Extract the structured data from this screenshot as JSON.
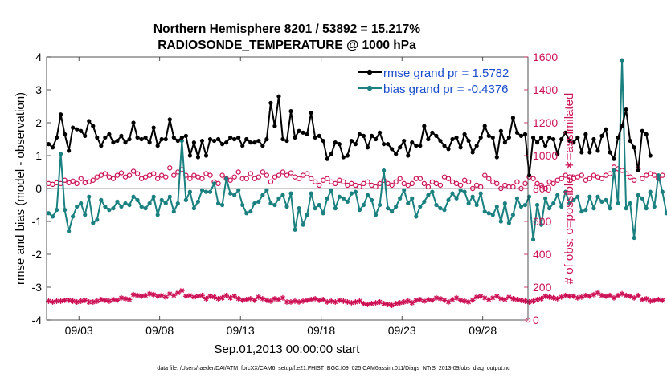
{
  "chart_data": {
    "type": "line",
    "title": [
      "Northern Hemisphere 8201 / 53892 = 15.217%",
      "RADIOSONDE_TEMPERATURE @ 1000 hPa"
    ],
    "xlabel": "Sep.01,2013 00:00:00 start",
    "ylabel_left": "rmse and bias (model - observation)",
    "ylabel_right": "# of obs: o=possible; ∗=assimilated",
    "footer": "data file: /Users/raeder/DAI/ATM_forcXX/CAM6_setup/f.e21.FHIST_BGC.f09_025.CAM6assim.011/Diags_NTrS_2013-09/obs_diag_output.nc",
    "xlim": [
      1.0,
      30.8
    ],
    "ylim_left": [
      -4,
      4
    ],
    "ylim_right": [
      0,
      1600
    ],
    "xticks": [
      3,
      8,
      13,
      18,
      23,
      28
    ],
    "xticklabels": [
      "09/03",
      "09/08",
      "09/13",
      "09/18",
      "09/23",
      "09/28"
    ],
    "yticks_left": [
      -4,
      -3,
      -2,
      -1,
      0,
      1,
      2,
      3,
      4
    ],
    "yticks_right": [
      0,
      200,
      400,
      600,
      800,
      1000,
      1200,
      1400,
      1600
    ],
    "x_step_days": 0.25,
    "x_start_day": 1.125,
    "legend_location": "top-right",
    "colors": {
      "rmse": "#000000",
      "bias": "#1a8080",
      "obs": "#cc1155",
      "legend_text": "#1a4ccc",
      "zero_line": "#999999"
    },
    "series": [
      {
        "name": "rmse",
        "legend": "rmse grand pr = 1.5782",
        "axis": "left",
        "values": [
          1.35,
          1.25,
          1.55,
          2.25,
          1.65,
          1.15,
          1.85,
          1.8,
          1.75,
          1.6,
          2.05,
          1.9,
          1.55,
          1.3,
          1.55,
          1.65,
          1.4,
          1.45,
          1.6,
          1.4,
          1.5,
          2.0,
          1.55,
          1.5,
          1.55,
          1.4,
          1.85,
          1.3,
          1.5,
          1.5,
          2.1,
          1.55,
          1.45,
          1.55,
          1.6,
          1.0,
          1.4,
          0.95,
          1.45,
          1.0,
          1.5,
          1.45,
          1.5,
          1.35,
          1.4,
          1.55,
          1.5,
          1.55,
          1.3,
          1.5,
          1.4,
          1.4,
          1.45,
          1.3,
          1.5,
          2.6,
          1.9,
          2.8,
          1.5,
          1.45,
          2.35,
          1.55,
          1.75,
          1.7,
          1.65,
          2.3,
          1.55,
          1.6,
          1.45,
          0.9,
          1.05,
          1.4,
          1.35,
          0.95,
          1.0,
          1.45,
          1.35,
          1.65,
          1.6,
          1.25,
          1.6,
          1.5,
          1.7,
          1.35,
          1.35,
          1.2,
          1.05,
          1.25,
          1.45,
          1.0,
          1.4,
          1.3,
          1.3,
          1.9,
          1.5,
          1.7,
          1.6,
          1.45,
          1.3,
          1.2,
          1.5,
          1.55,
          1.25,
          1.65,
          1.45,
          1.1,
          1.3,
          1.55,
          1.9,
          1.6,
          1.55,
          0.95,
          1.75,
          1.4,
          1.55,
          2.15,
          1.7,
          1.6,
          1.65,
          0.4,
          1.55,
          1.4,
          1.55,
          1.3,
          1.55,
          1.5,
          1.05,
          1.5,
          1.7,
          1.45,
          1.4,
          1.55,
          1.1,
          1.65,
          1.1,
          1.5,
          1.15,
          1.6,
          1.8,
          1.1,
          0.9,
          1.55,
          1.9,
          2.4,
          1.45,
          1.25,
          0.55,
          1.75,
          1.65,
          1.0
        ]
      },
      {
        "name": "bias",
        "legend": "bias grand pr = -0.4376",
        "axis": "left",
        "values": [
          -0.75,
          -0.85,
          -0.65,
          1.05,
          -0.65,
          -1.3,
          -0.85,
          -0.55,
          -0.45,
          -0.8,
          -0.25,
          -1.05,
          -0.95,
          -0.35,
          -0.55,
          -0.65,
          -0.6,
          -0.4,
          -0.55,
          -0.45,
          -0.5,
          -0.25,
          -0.35,
          -0.55,
          -0.6,
          -0.45,
          -0.25,
          -0.8,
          -0.35,
          -0.45,
          -0.25,
          -0.7,
          -0.45,
          1.45,
          -0.35,
          -0.1,
          -0.6,
          -0.4,
          -0.05,
          -0.1,
          -0.1,
          0.15,
          -0.45,
          -0.5,
          0.3,
          -0.15,
          -0.2,
          -0.05,
          -0.5,
          -0.75,
          -0.7,
          -0.45,
          -0.4,
          -0.2,
          -0.05,
          -0.45,
          -0.5,
          -0.3,
          -0.2,
          -0.55,
          -0.15,
          -1.25,
          -0.6,
          -1.1,
          -0.8,
          -0.15,
          -0.6,
          -0.5,
          -0.75,
          -0.3,
          -0.05,
          -0.6,
          -0.25,
          -0.3,
          -0.4,
          -0.15,
          -0.1,
          -0.65,
          -0.5,
          -0.2,
          -0.35,
          -0.8,
          -0.5,
          0.55,
          -0.6,
          -0.7,
          -0.55,
          -0.3,
          -0.05,
          -0.45,
          -0.3,
          -0.85,
          -0.55,
          -0.4,
          -0.2,
          -0.1,
          -0.5,
          -0.6,
          -0.65,
          -0.35,
          -0.15,
          -0.3,
          -0.05,
          -0.1,
          -0.45,
          -0.25,
          -0.5,
          -0.15,
          -0.7,
          -0.75,
          -0.8,
          -0.55,
          -1.0,
          -0.45,
          -1.05,
          -0.8,
          -0.3,
          -0.55,
          -0.5,
          -0.25,
          -1.55,
          -0.5,
          -1.1,
          -0.3,
          -0.6,
          -0.45,
          -0.2,
          -0.55,
          -0.1,
          -0.45,
          -0.35,
          -0.25,
          -0.7,
          -0.65,
          -0.25,
          -0.6,
          -0.25,
          -0.4,
          -0.35,
          -0.6,
          0.55,
          -0.45,
          3.9,
          -0.6,
          -0.45,
          -1.5,
          -0.2,
          -0.3,
          -0.6,
          -0.1,
          -0.55,
          0.4,
          -0.1,
          -0.75,
          -0.65
        ]
      },
      {
        "name": "possible",
        "axis": "right",
        "values": [
          830,
          825,
          835,
          830,
          850,
          835,
          845,
          830,
          860,
          835,
          840,
          850,
          870,
          880,
          890,
          870,
          860,
          880,
          895,
          870,
          880,
          905,
          890,
          860,
          870,
          880,
          890,
          860,
          880,
          870,
          925,
          880,
          900,
          915,
          880,
          860,
          880,
          870,
          860,
          890,
          880,
          840,
          830,
          880,
          860,
          850,
          870,
          900,
          860,
          860,
          890,
          860,
          870,
          900,
          880,
          840,
          870,
          880,
          900,
          880,
          895,
          870,
          860,
          880,
          890,
          860,
          840,
          820,
          850,
          860,
          840,
          830,
          850,
          840,
          820,
          830,
          820,
          810,
          830,
          840,
          820,
          810,
          830,
          850,
          830,
          820,
          840,
          860,
          830,
          820,
          830,
          860,
          860,
          830,
          810,
          840,
          830,
          820,
          870,
          860,
          840,
          830,
          820,
          850,
          840,
          800,
          820,
          810,
          880,
          860,
          840,
          830,
          800,
          820,
          810,
          810,
          840,
          800,
          830,
          870,
          860,
          830,
          820,
          800,
          840,
          830,
          850,
          860,
          880,
          870,
          860,
          870,
          880,
          850,
          860,
          880,
          870,
          860,
          880,
          890,
          930,
          920,
          910,
          890,
          870,
          850,
          920,
          860,
          880,
          890,
          880,
          860,
          880
        ]
      },
      {
        "name": "assimilated",
        "axis": "right",
        "values": [
          115,
          110,
          115,
          115,
          120,
          120,
          115,
          110,
          115,
          120,
          110,
          110,
          115,
          125,
          120,
          115,
          125,
          120,
          135,
          130,
          125,
          155,
          150,
          145,
          150,
          160,
          155,
          145,
          150,
          140,
          160,
          150,
          165,
          180,
          145,
          150,
          140,
          145,
          150,
          130,
          145,
          140,
          130,
          135,
          150,
          135,
          145,
          130,
          120,
          125,
          130,
          120,
          140,
          130,
          120,
          115,
          130,
          125,
          135,
          110,
          110,
          115,
          110,
          115,
          120,
          125,
          130,
          120,
          125,
          110,
          115,
          110,
          120,
          115,
          110,
          105,
          110,
          115,
          100,
          95,
          100,
          105,
          110,
          100,
          95,
          90,
          100,
          105,
          110,
          115,
          105,
          120,
          125,
          115,
          125,
          120,
          135,
          130,
          120,
          110,
          125,
          135,
          120,
          115,
          110,
          120,
          140,
          145,
          135,
          125,
          135,
          145,
          130,
          125,
          140,
          130,
          125,
          120,
          115,
          110,
          115,
          125,
          130,
          145,
          140,
          135,
          130,
          140,
          150,
          145,
          145,
          135,
          140,
          150,
          145,
          155,
          165,
          150,
          145,
          150,
          135,
          150,
          160,
          150,
          145,
          135,
          150,
          125,
          130,
          115,
          120,
          125,
          120
        ]
      }
    ]
  }
}
